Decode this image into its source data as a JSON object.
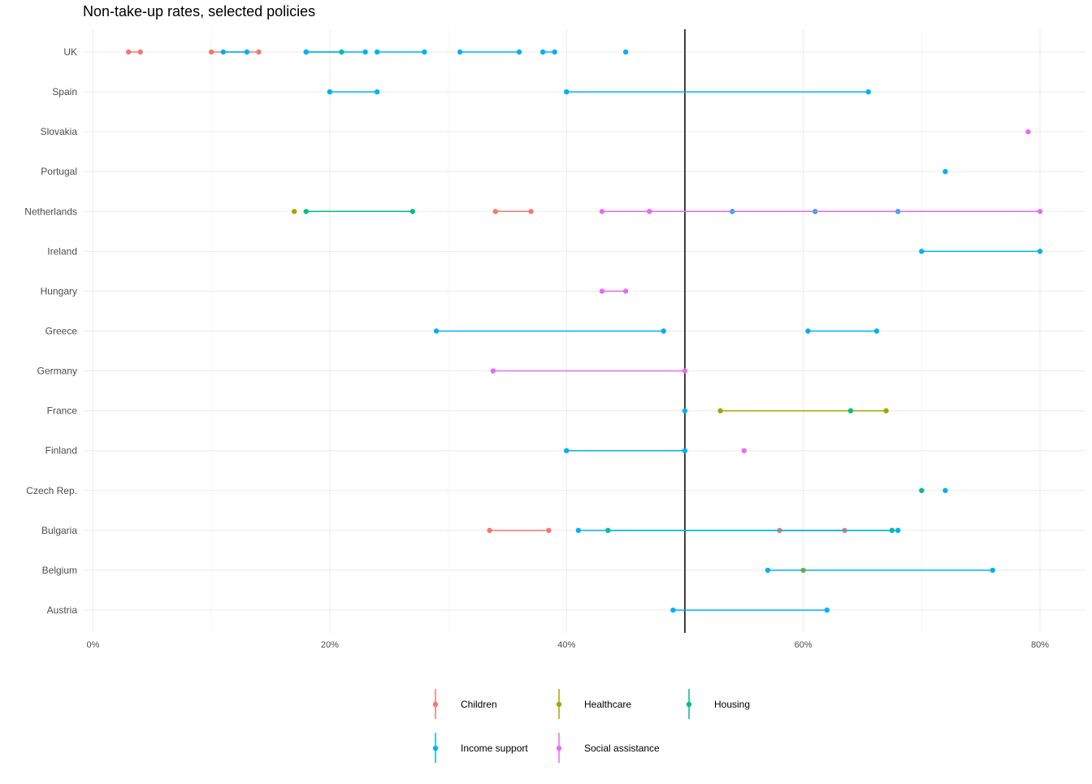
{
  "chart_data": {
    "type": "dot-range",
    "title": "Non-take-up rates, selected policies",
    "xlabel": "",
    "ylabel": "",
    "xlim": [
      0,
      0.8
    ],
    "x_ticks": [
      0,
      0.2,
      0.4,
      0.6,
      0.8
    ],
    "x_tick_labels": [
      "0%",
      "20%",
      "40%",
      "60%",
      "80%"
    ],
    "reference_line": 0.5,
    "grid": true,
    "legend_position": "bottom",
    "countries": [
      "UK",
      "Spain",
      "Slovakia",
      "Portugal",
      "Netherlands",
      "Ireland",
      "Hungary",
      "Greece",
      "Germany",
      "France",
      "Finland",
      "Czech Rep.",
      "Bulgaria",
      "Belgium",
      "Austria"
    ],
    "series": [
      {
        "name": "Children",
        "color": "#F8766D",
        "segments": [
          {
            "country": "UK",
            "from": 0.03,
            "to": 0.04
          },
          {
            "country": "UK",
            "from": 0.1,
            "to": 0.14
          },
          {
            "country": "Netherlands",
            "from": 0.34,
            "to": 0.37
          },
          {
            "country": "Bulgaria",
            "from": 0.335,
            "to": 0.385
          },
          {
            "country": "Bulgaria",
            "from": 0.58,
            "to": 0.635
          }
        ]
      },
      {
        "name": "Healthcare",
        "color": "#A3A500",
        "segments": [
          {
            "country": "Netherlands",
            "from": 0.17,
            "to": 0.17
          },
          {
            "country": "France",
            "from": 0.53,
            "to": 0.67
          },
          {
            "country": "Belgium",
            "from": 0.6,
            "to": 0.6
          }
        ]
      },
      {
        "name": "Housing",
        "color": "#00BF7D",
        "segments": [
          {
            "country": "UK",
            "from": 0.18,
            "to": 0.21
          },
          {
            "country": "Netherlands",
            "from": 0.18,
            "to": 0.27
          },
          {
            "country": "France",
            "from": 0.64,
            "to": 0.64
          },
          {
            "country": "Czech Rep.",
            "from": 0.7,
            "to": 0.7
          },
          {
            "country": "Bulgaria",
            "from": 0.435,
            "to": 0.675
          }
        ]
      },
      {
        "name": "Income support",
        "color": "#00B0F6",
        "segments": [
          {
            "country": "UK",
            "from": 0.11,
            "to": 0.13
          },
          {
            "country": "UK",
            "from": 0.18,
            "to": 0.23
          },
          {
            "country": "UK",
            "from": 0.24,
            "to": 0.28
          },
          {
            "country": "UK",
            "from": 0.31,
            "to": 0.36
          },
          {
            "country": "UK",
            "from": 0.38,
            "to": 0.39
          },
          {
            "country": "UK",
            "from": 0.45,
            "to": 0.45
          },
          {
            "country": "Spain",
            "from": 0.2,
            "to": 0.24
          },
          {
            "country": "Spain",
            "from": 0.4,
            "to": 0.655
          },
          {
            "country": "Portugal",
            "from": 0.72,
            "to": 0.72
          },
          {
            "country": "Netherlands",
            "from": 0.54,
            "to": 0.61
          },
          {
            "country": "Netherlands",
            "from": 0.68,
            "to": 0.68
          },
          {
            "country": "Ireland",
            "from": 0.7,
            "to": 0.8
          },
          {
            "country": "Greece",
            "from": 0.29,
            "to": 0.482
          },
          {
            "country": "Greece",
            "from": 0.604,
            "to": 0.662
          },
          {
            "country": "France",
            "from": 0.5,
            "to": 0.5
          },
          {
            "country": "Finland",
            "from": 0.4,
            "to": 0.5
          },
          {
            "country": "Czech Rep.",
            "from": 0.72,
            "to": 0.72
          },
          {
            "country": "Bulgaria",
            "from": 0.41,
            "to": 0.68
          },
          {
            "country": "Belgium",
            "from": 0.57,
            "to": 0.76
          },
          {
            "country": "Austria",
            "from": 0.49,
            "to": 0.62
          }
        ]
      },
      {
        "name": "Social assistance",
        "color": "#E76BF3",
        "segments": [
          {
            "country": "Slovakia",
            "from": 0.79,
            "to": 0.79
          },
          {
            "country": "Netherlands",
            "from": 0.43,
            "to": 0.47
          },
          {
            "country": "Netherlands",
            "from": 0.47,
            "to": 0.8
          },
          {
            "country": "Hungary",
            "from": 0.43,
            "to": 0.45
          },
          {
            "country": "Germany",
            "from": 0.338,
            "to": 0.5
          },
          {
            "country": "Finland",
            "from": 0.55,
            "to": 0.55
          }
        ]
      }
    ]
  }
}
